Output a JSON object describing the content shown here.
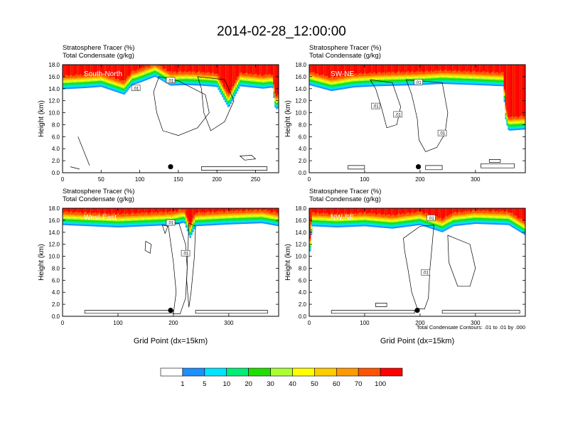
{
  "page": {
    "title": "2014-02-28_12:00:00",
    "contour_note": "Total Condensate Contours: .01 to .01 by .000"
  },
  "colors": {
    "levels": [
      "#ffffff",
      "#1e90ff",
      "#00e5ff",
      "#00ee77",
      "#22dd00",
      "#aaff33",
      "#ffff00",
      "#ffcc00",
      "#ff9900",
      "#ff5500",
      "#ff0000"
    ],
    "contour_line": "#000000"
  },
  "chart_data": [
    {
      "type": "heatmap",
      "panel_label": "South-North",
      "subtitle_line1": "Stratosphere Tracer   (%)",
      "subtitle_line2": "Total Condensate   (g/kg)",
      "ylabel": "Height (km)",
      "xlabel": "",
      "xlim": [
        0,
        280
      ],
      "ylim": [
        0,
        18
      ],
      "x_ticks": [
        "0",
        "50",
        "100",
        "150",
        "200",
        "250"
      ],
      "y_ticks": [
        "0.0",
        "2.0",
        "4.0",
        "6.0",
        "8.0",
        "10.0",
        "12.0",
        "14.0",
        "16.0",
        "18.0"
      ],
      "tracer_base_height_km": [
        [
          0,
          13.9
        ],
        [
          30,
          14.1
        ],
        [
          50,
          14.3
        ],
        [
          80,
          13.0
        ],
        [
          90,
          14.6
        ],
        [
          100,
          15.0
        ],
        [
          120,
          16.0
        ],
        [
          140,
          14.5
        ],
        [
          160,
          14.6
        ],
        [
          180,
          14.5
        ],
        [
          200,
          14.3
        ],
        [
          215,
          10.8
        ],
        [
          230,
          14.4
        ],
        [
          260,
          14.0
        ],
        [
          272,
          14.2
        ],
        [
          276,
          10.5
        ],
        [
          280,
          10.8
        ]
      ],
      "tracer_max_pct": 100,
      "contour_labels": [
        ".01",
        ".01"
      ],
      "marker_x": 140
    },
    {
      "type": "heatmap",
      "panel_label": "SW-NE",
      "subtitle_line1": "Stratosphere Tracer   (%)",
      "subtitle_line2": "Total Condensate   (g/kg)",
      "ylabel": "Height (km)",
      "xlabel": "",
      "xlim": [
        0,
        390
      ],
      "ylim": [
        0,
        18
      ],
      "x_ticks": [
        "0",
        "100",
        "200",
        "300"
      ],
      "y_ticks": [
        "0.0",
        "2.0",
        "4.0",
        "6.0",
        "8.0",
        "10.0",
        "12.0",
        "14.0",
        "16.0",
        "18.0"
      ],
      "tracer_base_height_km": [
        [
          0,
          14.6
        ],
        [
          40,
          13.6
        ],
        [
          80,
          14.2
        ],
        [
          120,
          14.4
        ],
        [
          160,
          14.5
        ],
        [
          200,
          14.6
        ],
        [
          240,
          14.8
        ],
        [
          300,
          14.6
        ],
        [
          350,
          14.4
        ],
        [
          355,
          8.5
        ],
        [
          360,
          7.0
        ],
        [
          390,
          7.2
        ]
      ],
      "tracer_max_pct": 100,
      "contour_labels": [
        ".01",
        ".01",
        ".01",
        ".01"
      ],
      "marker_x": 197
    },
    {
      "type": "heatmap",
      "panel_label": "West-East",
      "subtitle_line1": "Stratosphere Tracer   (%)",
      "subtitle_line2": "Total Condensate   (g/kg)",
      "ylabel": "Height (km)",
      "xlabel": "Grid Point (dx=15km)",
      "xlim": [
        0,
        390
      ],
      "ylim": [
        0,
        18
      ],
      "x_ticks": [
        "0",
        "100",
        "200",
        "300"
      ],
      "y_ticks": [
        "0.0",
        "2.0",
        "4.0",
        "6.0",
        "8.0",
        "10.0",
        "12.0",
        "14.0",
        "16.0",
        "18.0"
      ],
      "tracer_base_height_km": [
        [
          0,
          15.2
        ],
        [
          50,
          15.0
        ],
        [
          100,
          14.8
        ],
        [
          150,
          15.0
        ],
        [
          200,
          15.2
        ],
        [
          220,
          15.6
        ],
        [
          230,
          13.0
        ],
        [
          240,
          15.0
        ],
        [
          300,
          15.3
        ],
        [
          360,
          15.5
        ],
        [
          390,
          15.0
        ]
      ],
      "tracer_max_pct": 100,
      "contour_labels": [
        ".01",
        ".01"
      ],
      "marker_x": 195
    },
    {
      "type": "heatmap",
      "panel_label": "NW-SE",
      "subtitle_line1": "Stratosphere Tracer   (%)",
      "subtitle_line2": "Total Condensate   (g/kg)",
      "ylabel": "Height (km)",
      "xlabel": "Grid Point (dx=15km)",
      "xlim": [
        0,
        390
      ],
      "ylim": [
        0,
        18
      ],
      "x_ticks": [
        "0",
        "100",
        "200",
        "300"
      ],
      "y_ticks": [
        "0.0",
        "2.0",
        "4.0",
        "6.0",
        "8.0",
        "10.0",
        "12.0",
        "14.0",
        "16.0",
        "18.0"
      ],
      "tracer_base_height_km": [
        [
          0,
          9.5
        ],
        [
          5,
          15.0
        ],
        [
          50,
          14.8
        ],
        [
          100,
          15.0
        ],
        [
          150,
          14.6
        ],
        [
          200,
          15.2
        ],
        [
          240,
          14.0
        ],
        [
          260,
          15.0
        ],
        [
          300,
          15.4
        ],
        [
          360,
          15.2
        ],
        [
          390,
          13.5
        ]
      ],
      "tracer_max_pct": 100,
      "contour_labels": [
        ".01",
        ".01"
      ],
      "marker_x": 195
    }
  ],
  "colorbar": {
    "labels": [
      "1",
      "5",
      "10",
      "20",
      "30",
      "40",
      "50",
      "60",
      "70",
      "100"
    ]
  }
}
